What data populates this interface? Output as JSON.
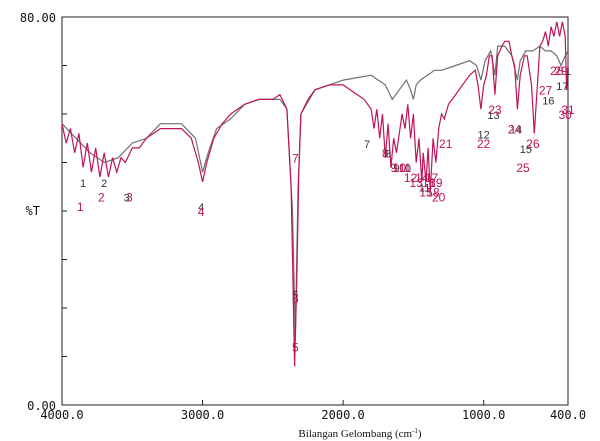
{
  "chart_data": {
    "type": "line",
    "ylabel": "%T",
    "xlabel_main": "Bilangan Gelombang (cm",
    "xlabel_sup": "-1",
    "xlabel_end": ")",
    "x_ticks": [
      "4000.0",
      "3000.0",
      "2000.0",
      "1000.0",
      "400.0"
    ],
    "x_tick_values": [
      4000,
      3000,
      2000,
      1000,
      400
    ],
    "y_ticks": [
      "80.00",
      "%T",
      "0.00"
    ],
    "xlim": [
      4000,
      400
    ],
    "ylim": [
      0,
      80
    ],
    "x_axis": "reversed",
    "colors": {
      "series1": "#707070",
      "series2": "#c0145a"
    },
    "series": [
      {
        "points": [
          [
            4000,
            58
          ],
          [
            3900,
            55
          ],
          [
            3800,
            52
          ],
          [
            3700,
            50
          ],
          [
            3600,
            51
          ],
          [
            3500,
            54
          ],
          [
            3400,
            55
          ],
          [
            3300,
            58
          ],
          [
            3150,
            58
          ],
          [
            3050,
            55
          ],
          [
            3000,
            48
          ],
          [
            2960,
            52
          ],
          [
            2900,
            57
          ],
          [
            2800,
            59
          ],
          [
            2700,
            62
          ],
          [
            2600,
            63
          ],
          [
            2450,
            63
          ],
          [
            2400,
            61
          ],
          [
            2360,
            40
          ],
          [
            2340,
            14
          ],
          [
            2320,
            45
          ],
          [
            2300,
            60
          ],
          [
            2200,
            65
          ],
          [
            2100,
            66
          ],
          [
            2000,
            67
          ],
          [
            1900,
            67.5
          ],
          [
            1800,
            68
          ],
          [
            1750,
            67
          ],
          [
            1700,
            66
          ],
          [
            1650,
            63
          ],
          [
            1600,
            65
          ],
          [
            1550,
            67
          ],
          [
            1520,
            65
          ],
          [
            1500,
            63
          ],
          [
            1480,
            66
          ],
          [
            1450,
            67
          ],
          [
            1400,
            68
          ],
          [
            1350,
            69
          ],
          [
            1300,
            69
          ],
          [
            1200,
            70
          ],
          [
            1100,
            71
          ],
          [
            1050,
            70
          ],
          [
            1020,
            67
          ],
          [
            990,
            71
          ],
          [
            950,
            73
          ],
          [
            920,
            68
          ],
          [
            900,
            74
          ],
          [
            850,
            74
          ],
          [
            800,
            72
          ],
          [
            760,
            67
          ],
          [
            740,
            71
          ],
          [
            700,
            73
          ],
          [
            650,
            73
          ],
          [
            600,
            74
          ],
          [
            560,
            73
          ],
          [
            520,
            73
          ],
          [
            480,
            72
          ],
          [
            450,
            70
          ],
          [
            420,
            72
          ],
          [
            400,
            73
          ]
        ]
      },
      {
        "points": [
          [
            4000,
            58
          ],
          [
            3970,
            54
          ],
          [
            3940,
            57
          ],
          [
            3910,
            52
          ],
          [
            3880,
            56
          ],
          [
            3850,
            49
          ],
          [
            3820,
            54
          ],
          [
            3790,
            48
          ],
          [
            3760,
            53
          ],
          [
            3730,
            47
          ],
          [
            3700,
            52
          ],
          [
            3670,
            47
          ],
          [
            3640,
            51
          ],
          [
            3610,
            48
          ],
          [
            3580,
            51
          ],
          [
            3550,
            50
          ],
          [
            3500,
            53
          ],
          [
            3450,
            53
          ],
          [
            3400,
            55
          ],
          [
            3300,
            57
          ],
          [
            3150,
            57
          ],
          [
            3080,
            55
          ],
          [
            3030,
            50
          ],
          [
            3000,
            46
          ],
          [
            2970,
            50
          ],
          [
            2920,
            55
          ],
          [
            2860,
            58
          ],
          [
            2800,
            60
          ],
          [
            2700,
            62
          ],
          [
            2600,
            63
          ],
          [
            2500,
            63
          ],
          [
            2450,
            64
          ],
          [
            2400,
            61
          ],
          [
            2370,
            45
          ],
          [
            2345,
            8
          ],
          [
            2330,
            25
          ],
          [
            2315,
            48
          ],
          [
            2300,
            60
          ],
          [
            2250,
            63
          ],
          [
            2200,
            65
          ],
          [
            2100,
            66
          ],
          [
            2000,
            66
          ],
          [
            1950,
            65
          ],
          [
            1900,
            64
          ],
          [
            1850,
            63
          ],
          [
            1800,
            61
          ],
          [
            1780,
            57
          ],
          [
            1760,
            61
          ],
          [
            1740,
            55
          ],
          [
            1720,
            60
          ],
          [
            1700,
            51
          ],
          [
            1680,
            58
          ],
          [
            1660,
            49
          ],
          [
            1640,
            55
          ],
          [
            1620,
            52
          ],
          [
            1600,
            56
          ],
          [
            1580,
            60
          ],
          [
            1560,
            57
          ],
          [
            1540,
            62
          ],
          [
            1520,
            55
          ],
          [
            1500,
            60
          ],
          [
            1480,
            50
          ],
          [
            1460,
            55
          ],
          [
            1440,
            46
          ],
          [
            1430,
            52
          ],
          [
            1410,
            46
          ],
          [
            1395,
            53
          ],
          [
            1380,
            44
          ],
          [
            1360,
            55
          ],
          [
            1340,
            50
          ],
          [
            1320,
            57
          ],
          [
            1300,
            60
          ],
          [
            1280,
            59
          ],
          [
            1250,
            62
          ],
          [
            1200,
            64
          ],
          [
            1150,
            66
          ],
          [
            1100,
            68
          ],
          [
            1060,
            69
          ],
          [
            1040,
            66
          ],
          [
            1020,
            61
          ],
          [
            1000,
            66
          ],
          [
            980,
            68
          ],
          [
            960,
            72
          ],
          [
            940,
            72
          ],
          [
            920,
            64
          ],
          [
            900,
            72
          ],
          [
            870,
            74
          ],
          [
            850,
            75
          ],
          [
            820,
            75
          ],
          [
            800,
            72
          ],
          [
            780,
            70
          ],
          [
            760,
            61
          ],
          [
            740,
            68
          ],
          [
            710,
            72
          ],
          [
            690,
            72
          ],
          [
            660,
            66
          ],
          [
            640,
            56
          ],
          [
            620,
            65
          ],
          [
            600,
            74
          ],
          [
            580,
            75
          ],
          [
            560,
            77
          ],
          [
            540,
            74
          ],
          [
            520,
            78
          ],
          [
            500,
            76
          ],
          [
            480,
            79
          ],
          [
            460,
            76
          ],
          [
            440,
            79
          ],
          [
            420,
            76
          ],
          [
            410,
            65
          ],
          [
            400,
            70
          ]
        ]
      }
    ],
    "peak_labels_gray": [
      {
        "text": "1",
        "x": 3850,
        "y": 45
      },
      {
        "text": "2",
        "x": 3700,
        "y": 45
      },
      {
        "text": "3",
        "x": 3540,
        "y": 42
      },
      {
        "text": "4",
        "x": 3010,
        "y": 40
      },
      {
        "text": "5",
        "x": 2340,
        "y": 22
      },
      {
        "text": "7",
        "x": 1830,
        "y": 53
      },
      {
        "text": "8",
        "x": 1680,
        "y": 51
      },
      {
        "text": "9",
        "x": 1620,
        "y": 48
      },
      {
        "text": "10",
        "x": 1560,
        "y": 48
      },
      {
        "text": "11",
        "x": 1420,
        "y": 44
      },
      {
        "text": "12",
        "x": 1000,
        "y": 55
      },
      {
        "text": "13",
        "x": 930,
        "y": 59
      },
      {
        "text": "14",
        "x": 770,
        "y": 56
      },
      {
        "text": "15",
        "x": 700,
        "y": 52
      },
      {
        "text": "16",
        "x": 540,
        "y": 62
      },
      {
        "text": "17",
        "x": 440,
        "y": 65
      },
      {
        "text": "1",
        "x": 400,
        "y": 68
      }
    ],
    "peak_labels_red": [
      {
        "text": "1",
        "x": 3870,
        "y": 40
      },
      {
        "text": "2",
        "x": 3720,
        "y": 42
      },
      {
        "text": "3",
        "x": 3520,
        "y": 42
      },
      {
        "text": "4",
        "x": 3010,
        "y": 39
      },
      {
        "text": "5",
        "x": 2340,
        "y": 11
      },
      {
        "text": "6",
        "x": 2340,
        "y": 21
      },
      {
        "text": "7",
        "x": 2340,
        "y": 50
      },
      {
        "text": "8",
        "x": 1700,
        "y": 51
      },
      {
        "text": "9",
        "x": 1640,
        "y": 48
      },
      {
        "text": "10",
        "x": 1600,
        "y": 48
      },
      {
        "text": "11",
        "x": 1560,
        "y": 48
      },
      {
        "text": "12",
        "x": 1520,
        "y": 46
      },
      {
        "text": "13",
        "x": 1480,
        "y": 45
      },
      {
        "text": "14",
        "x": 1440,
        "y": 46
      },
      {
        "text": "15",
        "x": 1410,
        "y": 43
      },
      {
        "text": "16",
        "x": 1390,
        "y": 45
      },
      {
        "text": "17",
        "x": 1370,
        "y": 46
      },
      {
        "text": "18",
        "x": 1360,
        "y": 43
      },
      {
        "text": "19",
        "x": 1340,
        "y": 45
      },
      {
        "text": "20",
        "x": 1320,
        "y": 42
      },
      {
        "text": "21",
        "x": 1270,
        "y": 53
      },
      {
        "text": "22",
        "x": 1000,
        "y": 53
      },
      {
        "text": "23",
        "x": 920,
        "y": 60
      },
      {
        "text": "24",
        "x": 780,
        "y": 56
      },
      {
        "text": "25",
        "x": 720,
        "y": 48
      },
      {
        "text": "26",
        "x": 650,
        "y": 53
      },
      {
        "text": "27",
        "x": 560,
        "y": 64
      },
      {
        "text": "28",
        "x": 480,
        "y": 68
      },
      {
        "text": "29",
        "x": 450,
        "y": 68
      },
      {
        "text": "30",
        "x": 420,
        "y": 59
      },
      {
        "text": "31",
        "x": 400,
        "y": 60
      }
    ]
  }
}
